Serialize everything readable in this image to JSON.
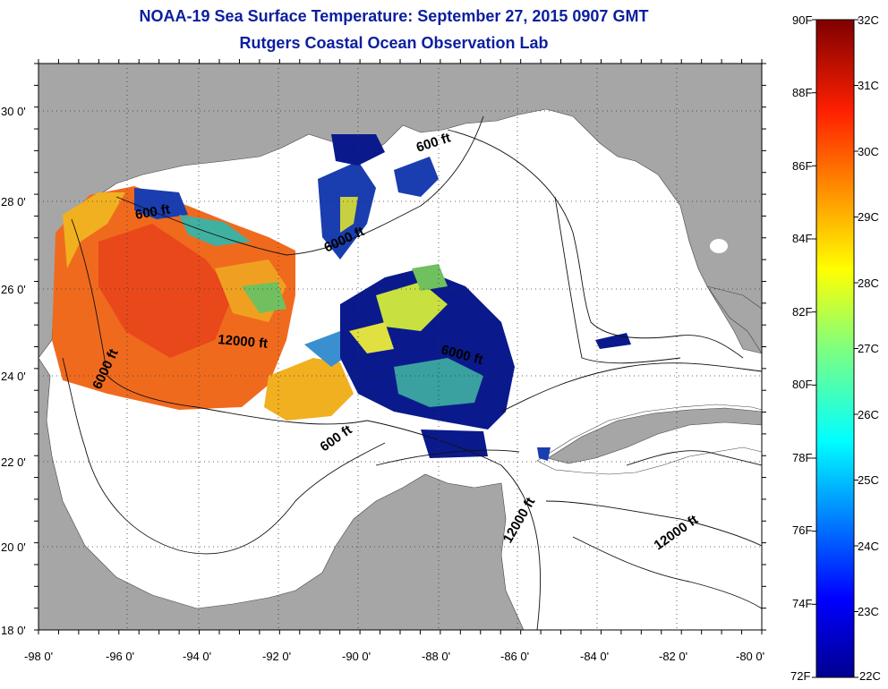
{
  "title": {
    "line1": "NOAA-19 Sea Surface Temperature:  September 27, 2015 0907 GMT",
    "line2": "Rutgers Coastal Ocean Observation Lab"
  },
  "axes": {
    "lat_ticks": [
      "30 0'",
      "28 0'",
      "26 0'",
      "24 0'",
      "22 0'",
      "20 0'",
      "18 0'"
    ],
    "lon_ticks": [
      "-98 0'",
      "-96 0'",
      "-94 0'",
      "-92 0'",
      "-90 0'",
      "-88 0'",
      "-86 0'",
      "-84 0'",
      "-82 0'",
      "-80 0'"
    ]
  },
  "contour_labels": [
    "600 ft",
    "600 ft",
    "6000 ft",
    "12000 ft",
    "6000 ft",
    "6000 ft",
    "600 ft",
    "12000 ft",
    "12000 ft"
  ],
  "colorbar": {
    "fahrenheit": [
      "90F",
      "88F",
      "86F",
      "84F",
      "82F",
      "80F",
      "78F",
      "76F",
      "74F",
      "72F"
    ],
    "celsius": [
      "32C",
      "31C",
      "30C",
      "29C",
      "28C",
      "27C",
      "26C",
      "25C",
      "24C",
      "23C",
      "22C"
    ],
    "range_f": [
      72,
      90
    ],
    "range_c": [
      22,
      32
    ]
  },
  "colors": {
    "title": "#0b1f9e",
    "land": "#a6a6a6",
    "ocean_nodata": "#ffffff",
    "warm": "#f06a1e",
    "mid": "#f0c01e",
    "cool": "#0a1a8c"
  }
}
